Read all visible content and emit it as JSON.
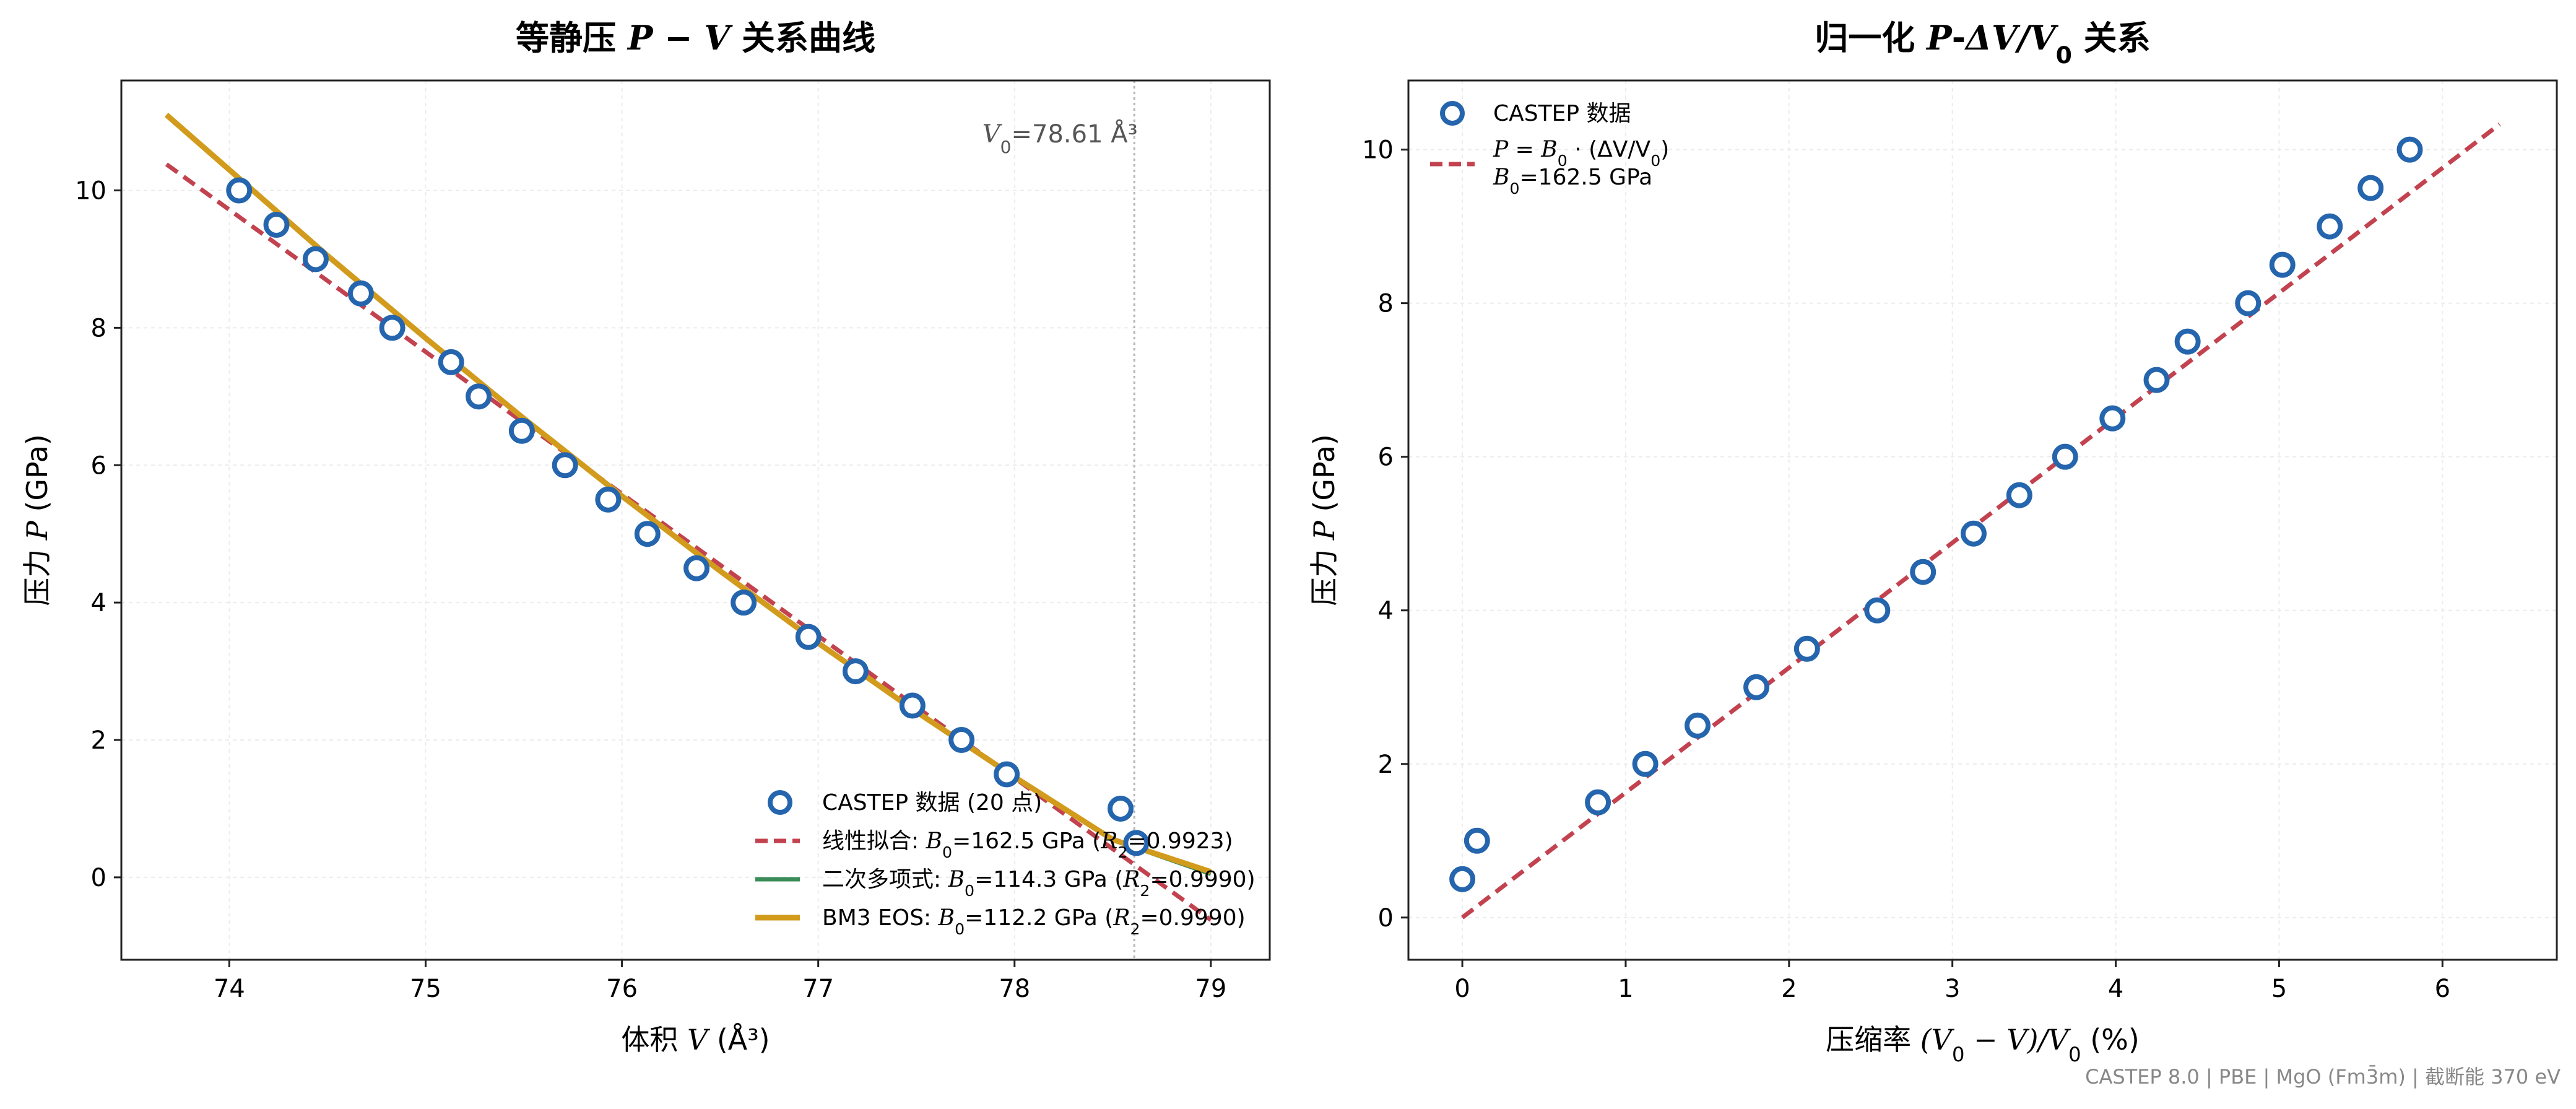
{
  "footer": "CASTEP 8.0 | PBE | MgO (Fm3̄m) | 截断能 370 eV",
  "colors": {
    "data_marker": "#2565ad",
    "linear": "#c3424f",
    "poly2": "#3a8c58",
    "bm3": "#d29b1c",
    "grid": "#ececec",
    "axes": "#222222",
    "v0_line": "#b5b5b5"
  },
  "chart_data": [
    {
      "type": "scatter",
      "title_parts": [
        "等静压 ",
        "P − V",
        " 关系曲线"
      ],
      "xlabel_parts": [
        "体积 ",
        "V",
        " (Å³)"
      ],
      "ylabel_parts": [
        "压力 ",
        "P",
        " (GPa)"
      ],
      "xlim": [
        73.45,
        79.3
      ],
      "ylim": [
        -1.2,
        11.6
      ],
      "xticks": [
        74,
        75,
        76,
        77,
        78,
        79
      ],
      "yticks": [
        0,
        2,
        4,
        6,
        8,
        10
      ],
      "grid": true,
      "legend_position": "lower right",
      "annotation": {
        "prefix": "V",
        "sub": "0",
        "text": "=78.61 Å³"
      },
      "v0": 78.61,
      "series": [
        {
          "name": "CASTEP 数据 (20 点)",
          "kind": "scatter",
          "x": [
            74.05,
            74.24,
            74.44,
            74.67,
            74.83,
            75.13,
            75.27,
            75.49,
            75.71,
            75.93,
            76.13,
            76.38,
            76.62,
            76.95,
            77.19,
            77.48,
            77.73,
            77.96,
            78.54,
            78.62
          ],
          "y": [
            10.0,
            9.5,
            9.0,
            8.5,
            8.0,
            7.5,
            7.0,
            6.5,
            6.0,
            5.5,
            5.0,
            4.5,
            4.0,
            3.5,
            3.0,
            2.5,
            2.0,
            1.5,
            1.0,
            0.5
          ]
        },
        {
          "name_parts": [
            "线性拟合: ",
            "B",
            "0",
            "=162.5 GPa (",
            "R",
            "2",
            "=0.9923)"
          ],
          "kind": "line-dashed",
          "x": [
            73.68,
            79.0
          ],
          "y": [
            10.38,
            -0.62
          ]
        },
        {
          "name_parts": [
            "二次多项式: ",
            "B",
            "0",
            "=114.3 GPa (",
            "R",
            "2",
            "=0.9990)"
          ],
          "kind": "line",
          "x": [
            73.68,
            74.0,
            74.5,
            75.0,
            75.5,
            76.0,
            76.5,
            77.0,
            77.5,
            78.0,
            78.5,
            79.0
          ],
          "y": [
            11.1,
            10.3,
            9.05,
            7.85,
            6.68,
            5.55,
            4.46,
            3.41,
            2.41,
            1.46,
            0.55,
            0.05
          ]
        },
        {
          "name_parts": [
            "BM3 EOS: ",
            "B",
            "0",
            "=112.2 GPa (",
            "R",
            "2",
            "=0.9990)"
          ],
          "kind": "line-thick",
          "x": [
            73.68,
            74.0,
            74.5,
            75.0,
            75.5,
            76.0,
            76.5,
            77.0,
            77.5,
            78.0,
            78.5,
            79.0
          ],
          "y": [
            11.1,
            10.3,
            9.05,
            7.85,
            6.68,
            5.55,
            4.46,
            3.41,
            2.41,
            1.46,
            0.55,
            0.08
          ]
        }
      ]
    },
    {
      "type": "scatter",
      "title_parts": [
        "归一化 ",
        "P",
        "-",
        "ΔV/V",
        "0",
        " 关系"
      ],
      "xlabel_parts": [
        "压缩率 ",
        "(V",
        "0",
        " − V)/V",
        "0",
        " (%)"
      ],
      "ylabel_parts": [
        "压力 ",
        "P",
        " (GPa)"
      ],
      "xlim": [
        -0.33,
        6.7
      ],
      "ylim": [
        -0.55,
        10.9
      ],
      "xticks": [
        0,
        1,
        2,
        3,
        4,
        5,
        6
      ],
      "yticks": [
        0,
        2,
        4,
        6,
        8,
        10
      ],
      "grid": true,
      "legend_position": "upper left",
      "series": [
        {
          "name": "CASTEP 数据",
          "kind": "scatter",
          "x": [
            0.0,
            0.09,
            0.83,
            1.12,
            1.44,
            1.8,
            2.11,
            2.54,
            2.82,
            3.13,
            3.41,
            3.69,
            3.98,
            4.25,
            4.44,
            4.81,
            5.02,
            5.31,
            5.56,
            5.8
          ],
          "y": [
            0.5,
            1.0,
            1.5,
            2.0,
            2.5,
            3.0,
            3.5,
            4.0,
            4.5,
            5.0,
            5.5,
            6.0,
            6.5,
            7.0,
            7.5,
            8.0,
            8.5,
            9.0,
            9.5,
            10.0
          ]
        },
        {
          "name_parts": [
            "P",
            " = ",
            "B",
            "0",
            " · (ΔV/V",
            "0",
            ")"
          ],
          "name_line2_parts": [
            "B",
            "0",
            "=162.5 GPa"
          ],
          "kind": "line-dashed",
          "x": [
            0.0,
            6.35
          ],
          "y": [
            0.0,
            10.33
          ]
        }
      ]
    }
  ]
}
